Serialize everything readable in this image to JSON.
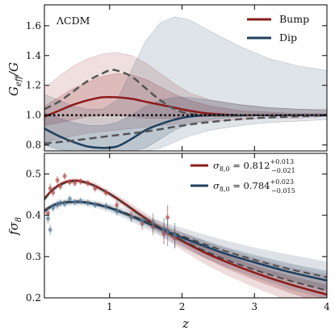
{
  "chart_data": [
    {
      "type": "line",
      "annotation": "ΛCDM",
      "ylabel": "G_eff/G",
      "xlim": [
        0.1,
        4.0
      ],
      "ylim": [
        0.76,
        1.74
      ],
      "yticks": [
        0.8,
        1.0,
        1.2,
        1.4,
        1.6
      ],
      "ytick_labels": [
        "0.8",
        "1.0",
        "1.2",
        "1.4",
        "1.6"
      ],
      "legend": {
        "position": "upper-right",
        "entries": [
          "Bump",
          "Dip"
        ]
      },
      "series": [
        {
          "name": "Bump",
          "color": "#8b1a1a",
          "x": [
            0.1,
            0.3,
            0.5,
            0.7,
            0.9,
            1.1,
            1.3,
            1.5,
            1.7,
            1.9,
            2.1,
            2.4,
            2.8,
            3.2,
            3.6,
            4.0
          ],
          "y": [
            0.99,
            1.03,
            1.07,
            1.1,
            1.12,
            1.12,
            1.11,
            1.09,
            1.07,
            1.05,
            1.03,
            1.01,
            1.0,
            1.0,
            1.0,
            1.0
          ],
          "band_inner": [
            [
              0.93,
              0.95,
              0.97,
              0.99,
              1.0,
              1.0,
              0.99,
              0.98,
              0.98,
              0.98,
              0.99,
              0.99,
              0.99,
              1.0,
              1.0,
              1.0
            ],
            [
              1.06,
              1.12,
              1.18,
              1.22,
              1.26,
              1.28,
              1.27,
              1.24,
              1.19,
              1.14,
              1.1,
              1.06,
              1.03,
              1.02,
              1.01,
              1.01
            ]
          ],
          "band_outer": [
            [
              0.82,
              0.84,
              0.86,
              0.88,
              0.89,
              0.9,
              0.91,
              0.92,
              0.93,
              0.94,
              0.95,
              0.96,
              0.97,
              0.98,
              0.98,
              0.99
            ],
            [
              1.18,
              1.26,
              1.33,
              1.38,
              1.41,
              1.42,
              1.4,
              1.35,
              1.28,
              1.21,
              1.15,
              1.1,
              1.07,
              1.05,
              1.04,
              1.04
            ]
          ]
        },
        {
          "name": "Dip",
          "color": "#1f3f5c",
          "x": [
            0.1,
            0.3,
            0.5,
            0.7,
            0.9,
            1.1,
            1.3,
            1.5,
            1.7,
            1.9,
            2.1,
            2.4,
            2.8,
            3.2,
            3.6,
            4.0
          ],
          "y": [
            0.91,
            0.86,
            0.82,
            0.79,
            0.78,
            0.79,
            0.84,
            0.9,
            0.94,
            0.97,
            0.99,
            1.0,
            1.0,
            1.0,
            1.0,
            1.0
          ],
          "band_inner": [
            [
              0.8,
              0.77,
              0.76,
              0.76,
              0.76,
              0.76,
              0.76,
              0.78,
              0.84,
              0.9,
              0.94,
              0.97,
              0.99,
              1.0,
              1.0,
              1.0
            ],
            [
              1.02,
              0.98,
              0.95,
              0.93,
              0.93,
              0.95,
              1.0,
              1.06,
              1.1,
              1.12,
              1.12,
              1.1,
              1.07,
              1.05,
              1.04,
              1.03
            ]
          ],
          "band_outer": [
            [
              0.76,
              0.76,
              0.76,
              0.76,
              0.76,
              0.76,
              0.76,
              0.76,
              0.78,
              0.82,
              0.86,
              0.9,
              0.93,
              0.95,
              0.96,
              0.97
            ],
            [
              1.14,
              1.1,
              1.06,
              1.04,
              1.04,
              1.1,
              1.3,
              1.5,
              1.62,
              1.66,
              1.64,
              1.56,
              1.46,
              1.38,
              1.33,
              1.3
            ]
          ]
        },
        {
          "style": "dashed",
          "color": "#555555",
          "x": [
            0.1,
            0.3,
            0.5,
            0.7,
            0.9,
            1.0,
            1.1,
            1.3,
            1.5,
            1.7,
            1.9,
            2.1,
            2.4,
            2.8,
            3.2,
            3.6,
            4.0
          ],
          "y": [
            1.04,
            1.09,
            1.16,
            1.23,
            1.28,
            1.3,
            1.3,
            1.26,
            1.18,
            1.1,
            1.04,
            1.01,
            1.0,
            1.0,
            1.0,
            1.0,
            1.0
          ]
        },
        {
          "style": "dashed",
          "color": "#555555",
          "x": [
            0.1,
            0.5,
            1.0,
            1.5,
            2.0,
            2.5,
            3.0,
            3.5,
            4.0
          ],
          "y": [
            0.81,
            0.83,
            0.86,
            0.89,
            0.93,
            0.96,
            0.98,
            0.99,
            1.0
          ]
        },
        {
          "style": "dotted",
          "color": "#000000",
          "x": [
            0.1,
            4.0
          ],
          "y": [
            1.0,
            1.0
          ]
        }
      ]
    },
    {
      "type": "line",
      "xlabel": "z",
      "ylabel": "fσ8",
      "xlim": [
        0.1,
        4.0
      ],
      "ylim": [
        0.2,
        0.55
      ],
      "xticks": [
        1,
        2,
        3,
        4
      ],
      "xtick_labels": [
        "1",
        "2",
        "3",
        "4"
      ],
      "yticks": [
        0.2,
        0.3,
        0.4,
        0.5
      ],
      "ytick_labels": [
        "0.2",
        "0.3",
        "0.4",
        "0.5"
      ],
      "legend": {
        "position": "upper-right",
        "entries": [
          {
            "prefix": "σ",
            "sub": "8,0",
            "eq": " = 0.812",
            "sup": "+0.013",
            "subscript": "−0.021"
          },
          {
            "prefix": "σ",
            "sub": "8,0",
            "eq": " = 0.784",
            "sup": "+0.023",
            "subscript": "−0.015"
          }
        ]
      },
      "series": [
        {
          "name": "σ8,0 = 0.812",
          "color": "#8b1a1a",
          "x": [
            0.1,
            0.2,
            0.3,
            0.4,
            0.5,
            0.6,
            0.7,
            0.8,
            1.0,
            1.2,
            1.4,
            1.6,
            1.8,
            2.0,
            2.3,
            2.6,
            3.0,
            3.5,
            4.0
          ],
          "y": [
            0.44,
            0.46,
            0.473,
            0.481,
            0.484,
            0.483,
            0.478,
            0.471,
            0.452,
            0.429,
            0.404,
            0.38,
            0.358,
            0.338,
            0.311,
            0.288,
            0.261,
            0.232,
            0.208
          ],
          "band_spread": [
            0.003,
            0.003,
            0.003,
            0.003,
            0.003,
            0.003,
            0.003,
            0.004,
            0.004,
            0.005,
            0.006,
            0.007,
            0.009,
            0.011,
            0.014,
            0.016,
            0.018,
            0.021,
            0.024
          ]
        },
        {
          "name": "σ8,0 = 0.784",
          "color": "#1f3f5c",
          "x": [
            0.1,
            0.2,
            0.3,
            0.4,
            0.5,
            0.6,
            0.7,
            0.8,
            1.0,
            1.2,
            1.4,
            1.6,
            1.8,
            2.0,
            2.3,
            2.6,
            3.0,
            3.5,
            4.0
          ],
          "y": [
            0.41,
            0.422,
            0.428,
            0.431,
            0.432,
            0.432,
            0.43,
            0.427,
            0.418,
            0.405,
            0.39,
            0.375,
            0.36,
            0.346,
            0.326,
            0.307,
            0.286,
            0.262,
            0.242
          ],
          "band_spread": [
            0.004,
            0.004,
            0.004,
            0.004,
            0.004,
            0.004,
            0.004,
            0.004,
            0.005,
            0.006,
            0.007,
            0.008,
            0.01,
            0.012,
            0.014,
            0.016,
            0.018,
            0.021,
            0.023
          ]
        },
        {
          "style": "dashed",
          "color": "#444444",
          "x": [
            0.1,
            0.2,
            0.3,
            0.4,
            0.5,
            0.6,
            0.7,
            0.8,
            1.0,
            1.2,
            1.4,
            1.6,
            1.8,
            2.0,
            2.3,
            2.6,
            3.0,
            3.5,
            4.0
          ],
          "y": [
            0.438,
            0.458,
            0.471,
            0.479,
            0.482,
            0.481,
            0.477,
            0.47,
            0.451,
            0.428,
            0.403,
            0.38,
            0.359,
            0.34,
            0.315,
            0.293,
            0.268,
            0.241,
            0.218
          ]
        },
        {
          "style": "dashed",
          "color": "#444444",
          "x": [
            0.1,
            0.2,
            0.3,
            0.4,
            0.5,
            0.6,
            0.7,
            0.8,
            1.0,
            1.2,
            1.4,
            1.6,
            1.8,
            2.0,
            2.3,
            2.6,
            3.0,
            3.5,
            4.0
          ],
          "y": [
            0.412,
            0.424,
            0.43,
            0.433,
            0.434,
            0.434,
            0.432,
            0.429,
            0.42,
            0.407,
            0.393,
            0.378,
            0.364,
            0.35,
            0.331,
            0.313,
            0.292,
            0.269,
            0.25
          ]
        }
      ],
      "mock_data": [
        {
          "name": "red-points",
          "color": "#b04a4a",
          "x": [
            0.15,
            0.18,
            0.22,
            0.28,
            0.32,
            0.38,
            0.45,
            0.52,
            0.6,
            0.7,
            0.8,
            0.95,
            1.1,
            1.3,
            1.45,
            1.6,
            1.75,
            1.8,
            1.9
          ],
          "y": [
            0.405,
            0.465,
            0.455,
            0.485,
            0.47,
            0.495,
            0.48,
            0.478,
            0.482,
            0.478,
            0.465,
            0.455,
            0.425,
            0.398,
            0.38,
            0.372,
            0.355,
            0.395,
            0.345
          ],
          "err": [
            0.012,
            0.012,
            0.01,
            0.01,
            0.009,
            0.009,
            0.008,
            0.008,
            0.008,
            0.008,
            0.008,
            0.009,
            0.01,
            0.012,
            0.015,
            0.02,
            0.025,
            0.03,
            0.025
          ]
        },
        {
          "name": "blue-points",
          "color": "#5a7d9a",
          "x": [
            0.15,
            0.18,
            0.22,
            0.28,
            0.32,
            0.38,
            0.45,
            0.52,
            0.6,
            0.7,
            0.8,
            0.95,
            1.1,
            1.3,
            1.45,
            1.6,
            1.75,
            1.8,
            1.9
          ],
          "y": [
            0.392,
            0.365,
            0.418,
            0.425,
            0.43,
            0.428,
            0.44,
            0.432,
            0.435,
            0.43,
            0.425,
            0.422,
            0.41,
            0.395,
            0.388,
            0.383,
            0.368,
            0.36,
            0.352
          ],
          "err": [
            0.012,
            0.012,
            0.01,
            0.01,
            0.009,
            0.009,
            0.008,
            0.008,
            0.008,
            0.008,
            0.008,
            0.009,
            0.01,
            0.012,
            0.016,
            0.022,
            0.025,
            0.035,
            0.03
          ]
        }
      ]
    }
  ]
}
